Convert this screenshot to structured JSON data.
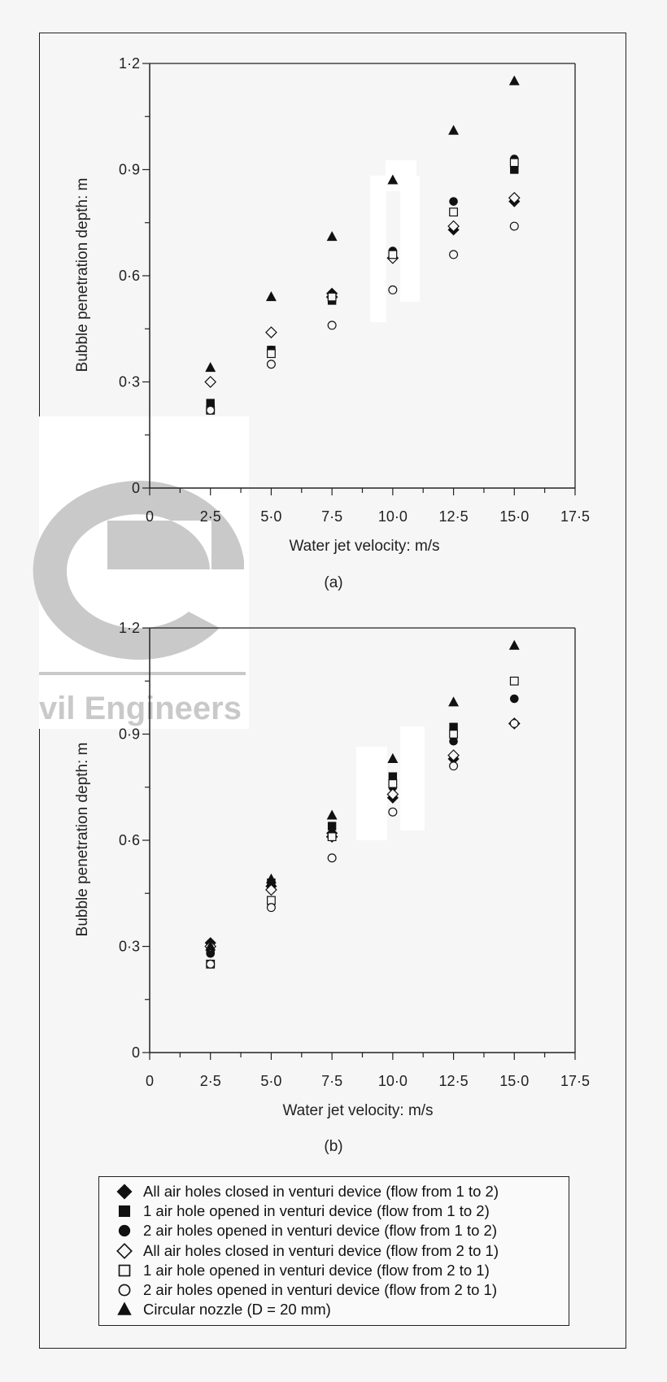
{
  "colors": {
    "background": "#f6f6f6",
    "marker": "#111111",
    "watermark": "#c9c9c9"
  },
  "watermark": {
    "text": "vil Engineers"
  },
  "chart_data": [
    {
      "type": "scatter",
      "panel_label": "(a)",
      "xlabel": "Water jet velocity: m/s",
      "ylabel": "Bubble penetration depth: m",
      "xlim": [
        0,
        17.5
      ],
      "ylim": [
        0,
        1.2
      ],
      "xticks": [
        "0",
        "2·5",
        "5·0",
        "7·5",
        "10·0",
        "12·5",
        "15·0",
        "17·5"
      ],
      "yticks": [
        "0",
        "0·3",
        "0·6",
        "0·9",
        "1·2"
      ],
      "x": [
        2.5,
        5.0,
        7.5,
        10.0,
        12.5,
        15.0
      ],
      "series": [
        {
          "marker": "diamond-filled",
          "values": [
            0.3,
            0.44,
            0.55,
            0.65,
            0.73,
            0.81
          ]
        },
        {
          "marker": "square-filled",
          "values": [
            0.24,
            0.39,
            0.53,
            0.66,
            0.78,
            0.9
          ]
        },
        {
          "marker": "circle-filled",
          "values": [
            0.23,
            0.39,
            0.54,
            0.67,
            0.81,
            0.93
          ]
        },
        {
          "marker": "diamond-open",
          "values": [
            0.3,
            0.44,
            0.54,
            0.65,
            0.74,
            0.82
          ]
        },
        {
          "marker": "square-open",
          "values": [
            0.22,
            0.38,
            0.54,
            0.66,
            0.78,
            0.92
          ]
        },
        {
          "marker": "circle-open",
          "values": [
            0.22,
            0.35,
            0.46,
            0.56,
            0.66,
            0.74
          ]
        },
        {
          "marker": "triangle-filled",
          "values": [
            0.34,
            0.54,
            0.71,
            0.87,
            1.01,
            1.15
          ]
        }
      ]
    },
    {
      "type": "scatter",
      "panel_label": "(b)",
      "xlabel": "Water jet velocity: m/s",
      "ylabel": "Bubble penetration depth: m",
      "xlim": [
        0,
        17.5
      ],
      "ylim": [
        0,
        1.2
      ],
      "xticks": [
        "0",
        "2·5",
        "5·0",
        "7·5",
        "10·0",
        "12·5",
        "15·0",
        "17·5"
      ],
      "yticks": [
        "0",
        "0·3",
        "0·6",
        "0·9",
        "1·2"
      ],
      "x": [
        2.5,
        5.0,
        7.5,
        10.0,
        12.5,
        15.0
      ],
      "series": [
        {
          "marker": "diamond-filled",
          "values": [
            0.31,
            0.47,
            0.62,
            0.72,
            0.83,
            0.93
          ]
        },
        {
          "marker": "square-filled",
          "values": [
            0.29,
            0.48,
            0.64,
            0.78,
            0.92,
            1.05
          ]
        },
        {
          "marker": "circle-filled",
          "values": [
            0.28,
            0.46,
            0.61,
            0.75,
            0.88,
            1.0
          ]
        },
        {
          "marker": "diamond-open",
          "values": [
            0.3,
            0.46,
            0.61,
            0.73,
            0.84,
            0.93
          ]
        },
        {
          "marker": "square-open",
          "values": [
            0.25,
            0.43,
            0.61,
            0.76,
            0.9,
            1.05
          ]
        },
        {
          "marker": "circle-open",
          "values": [
            0.25,
            0.41,
            0.55,
            0.68,
            0.81,
            0.93
          ]
        },
        {
          "marker": "triangle-filled",
          "values": [
            0.3,
            0.49,
            0.67,
            0.83,
            0.99,
            1.15
          ]
        }
      ]
    }
  ],
  "legend": [
    {
      "marker": "diamond-filled",
      "label": "All air holes closed in venturi device (flow from 1 to 2)"
    },
    {
      "marker": "square-filled",
      "label": "1 air hole opened in venturi device (flow from 1 to 2)"
    },
    {
      "marker": "circle-filled",
      "label": "2 air holes opened in venturi device (flow from 1 to 2)"
    },
    {
      "marker": "diamond-open",
      "label": "All air holes closed in venturi device (flow from 2 to 1)"
    },
    {
      "marker": "square-open",
      "label": "1 air hole opened in venturi device (flow from 2 to 1)"
    },
    {
      "marker": "circle-open",
      "label": "2 air holes opened in venturi device (flow from 2 to 1)"
    },
    {
      "marker": "triangle-filled",
      "label": "Circular nozzle (D = 20 mm)"
    }
  ]
}
